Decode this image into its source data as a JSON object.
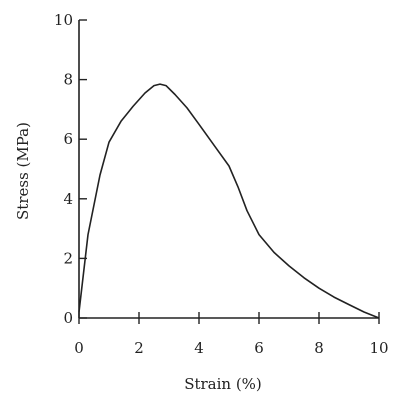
{
  "chart_data": {
    "type": "line",
    "title": "",
    "xlabel": "Strain (%)",
    "ylabel": "Stress (MPa)",
    "xlim": [
      0,
      10
    ],
    "ylim": [
      0,
      10
    ],
    "xticks": [
      0,
      2,
      4,
      6,
      8,
      10
    ],
    "yticks": [
      0,
      2,
      4,
      6,
      8,
      10
    ],
    "grid": false,
    "series": [
      {
        "x": [
          0,
          0.3,
          0.7,
          1.0,
          1.4,
          1.8,
          2.2,
          2.5,
          2.7,
          2.9,
          3.2,
          3.6,
          4.0,
          4.5,
          5.0,
          5.3,
          5.6,
          6.0,
          6.5,
          7.0,
          7.5,
          8.0,
          8.5,
          9.0,
          9.5,
          10.0
        ],
        "y": [
          0.2,
          2.8,
          4.8,
          5.9,
          6.6,
          7.1,
          7.55,
          7.8,
          7.85,
          7.8,
          7.5,
          7.05,
          6.5,
          5.8,
          5.1,
          4.4,
          3.6,
          2.8,
          2.2,
          1.75,
          1.35,
          1.0,
          0.7,
          0.45,
          0.2,
          0.0
        ]
      }
    ]
  }
}
